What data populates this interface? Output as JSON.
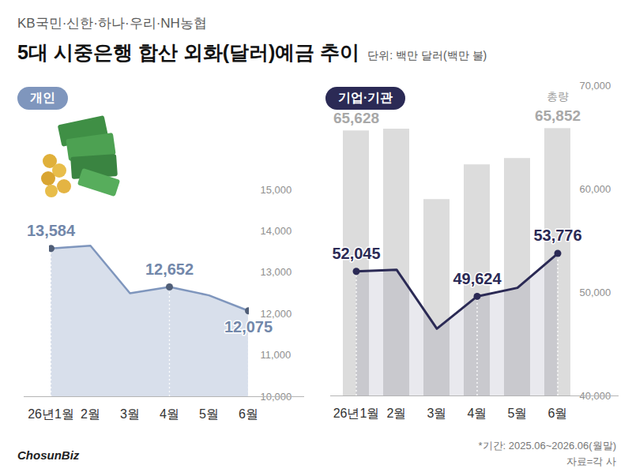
{
  "subtitle": "KB국민·신한·하나·우리·NH농협",
  "title": "5대 시중은행 합산 외화(달러)예금 추이",
  "unit": "단위: 백만 달러(백만 불)",
  "note": "*기간: 2025.06~2026.06(월말)",
  "source": "자료=각 사",
  "logo": "ChosunBiz",
  "chart_data": [
    {
      "type": "line",
      "title": "개인",
      "categories": [
        "26년1월",
        "2월",
        "3월",
        "4월",
        "5월",
        "6월"
      ],
      "values": [
        13584,
        13650,
        12500,
        12652,
        12450,
        12075
      ],
      "value_labels": [
        "13,584",
        null,
        null,
        "12,652",
        null,
        "12,075"
      ],
      "color": "#7f96bd",
      "marker": "circle",
      "ylim": [
        10000,
        15000
      ],
      "yticks": [
        {
          "value": 10000,
          "label": "10,000"
        },
        {
          "value": 11000,
          "label": "11,000"
        },
        {
          "value": 12000,
          "label": "12,000"
        },
        {
          "value": 13000,
          "label": "13,000"
        },
        {
          "value": 14000,
          "label": "14,000"
        },
        {
          "value": 15000,
          "label": "15,000"
        }
      ],
      "grid": false,
      "data_labels": true
    },
    {
      "type": "bar",
      "title": "기업·기관",
      "categories": [
        "26년1월",
        "2월",
        "3월",
        "4월",
        "5월",
        "6월"
      ],
      "series": [
        {
          "name": "총량",
          "type": "bar",
          "color": "#dcdcdc",
          "values": [
            65628,
            65800,
            58990,
            62350,
            62960,
            65852
          ],
          "value_labels": [
            "65,628",
            null,
            null,
            null,
            null,
            "65,852"
          ]
        },
        {
          "type": "line",
          "color": "#2b2a55",
          "marker": "circle",
          "values": [
            52045,
            52200,
            46500,
            49624,
            50450,
            53776
          ],
          "value_labels": [
            "52,045",
            null,
            null,
            "49,624",
            null,
            "53,776"
          ]
        }
      ],
      "ylim": [
        40000,
        70000
      ],
      "yticks": [
        {
          "value": 40000,
          "label": "40,000"
        },
        {
          "value": 50000,
          "label": "50,000"
        },
        {
          "value": 60000,
          "label": "60,000"
        },
        {
          "value": 70000,
          "label": "70,000"
        }
      ],
      "grid": false,
      "data_labels": true
    }
  ]
}
